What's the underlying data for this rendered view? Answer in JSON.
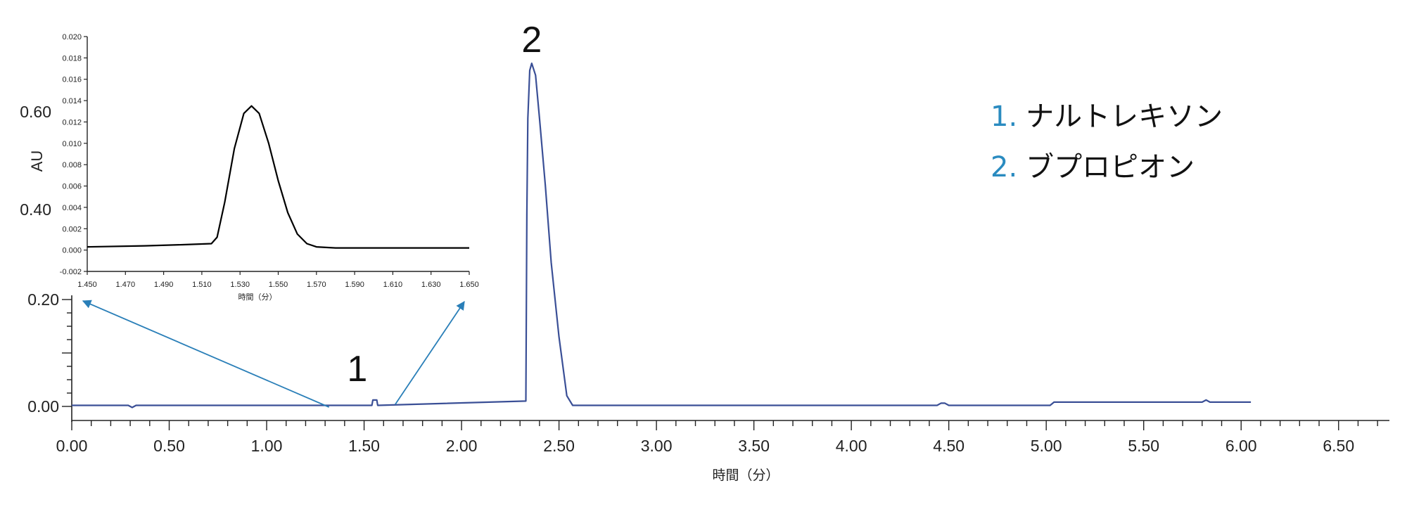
{
  "chart_data": [
    {
      "type": "line",
      "title": "",
      "xlabel": "時間（分）",
      "ylabel": "",
      "xlim": [
        0.0,
        6.75
      ],
      "ylim": [
        -0.06,
        0.72
      ],
      "x_ticks": [
        "0.00",
        "0.50",
        "1.00",
        "1.50",
        "2.00",
        "2.50",
        "3.00",
        "3.50",
        "4.00",
        "4.50",
        "5.00",
        "5.50",
        "6.00",
        "6.50"
      ],
      "y_ticks": [
        "0.00",
        "0.20",
        "0.40",
        "0.60"
      ],
      "line_color": "#3a4f96",
      "series": [
        {
          "x": [
            0.0,
            0.29,
            0.31,
            0.33,
            1.54,
            1.545,
            1.565,
            1.57,
            2.33,
            2.335,
            2.34,
            2.35,
            2.36,
            2.38,
            2.4,
            2.43,
            2.46,
            2.5,
            2.54,
            2.57,
            4.44,
            4.46,
            4.48,
            4.5,
            5.02,
            5.04,
            5.8,
            5.82,
            5.84,
            6.05
          ],
          "y": [
            0.002,
            0.002,
            -0.002,
            0.002,
            0.002,
            0.012,
            0.012,
            0.002,
            0.01,
            0.4,
            0.6,
            0.7,
            0.715,
            0.69,
            0.6,
            0.46,
            0.3,
            0.13,
            0.02,
            0.002,
            0.002,
            0.006,
            0.006,
            0.002,
            0.002,
            0.008,
            0.008,
            0.012,
            0.008,
            0.008
          ]
        }
      ],
      "annotations": [
        {
          "label": "1",
          "x": 1.53,
          "y": 0.075
        },
        {
          "label": "2",
          "x": 2.36,
          "y": 0.77
        }
      ],
      "legend_placement": "top-right",
      "legend": [
        {
          "num": "1.",
          "name": "ナルトレキソン"
        },
        {
          "num": "2.",
          "name": "ブプロピオン"
        }
      ],
      "zoom_arrows": [
        {
          "from": [
            1.32,
            0.002
          ],
          "to": [
            0.06,
            0.215
          ]
        },
        {
          "from": [
            1.66,
            0.002
          ],
          "to": [
            2.02,
            0.225
          ]
        }
      ]
    },
    {
      "type": "line",
      "title": "",
      "xlabel": "時間（分）",
      "ylabel": "AU",
      "xlim": [
        1.45,
        1.65
      ],
      "ylim": [
        -0.002,
        0.02
      ],
      "x_ticks": [
        "1.450",
        "1.470",
        "1.490",
        "1.510",
        "1.530",
        "1.550",
        "1.570",
        "1.590",
        "1.610",
        "1.630",
        "1.650"
      ],
      "y_ticks": [
        "-0.002",
        "0.000",
        "0.002",
        "0.004",
        "0.006",
        "0.008",
        "0.010",
        "0.012",
        "0.014",
        "0.016",
        "0.018",
        "0.020"
      ],
      "line_color": "#000000",
      "series": [
        {
          "x": [
            1.45,
            1.48,
            1.5,
            1.515,
            1.518,
            1.522,
            1.527,
            1.532,
            1.536,
            1.54,
            1.545,
            1.55,
            1.555,
            1.56,
            1.565,
            1.57,
            1.58,
            1.6,
            1.65
          ],
          "y": [
            0.0003,
            0.0004,
            0.0005,
            0.0006,
            0.0012,
            0.0045,
            0.0095,
            0.0128,
            0.0135,
            0.0128,
            0.01,
            0.0065,
            0.0035,
            0.0015,
            0.0006,
            0.0003,
            0.0002,
            0.0002,
            0.0002
          ]
        }
      ]
    }
  ]
}
